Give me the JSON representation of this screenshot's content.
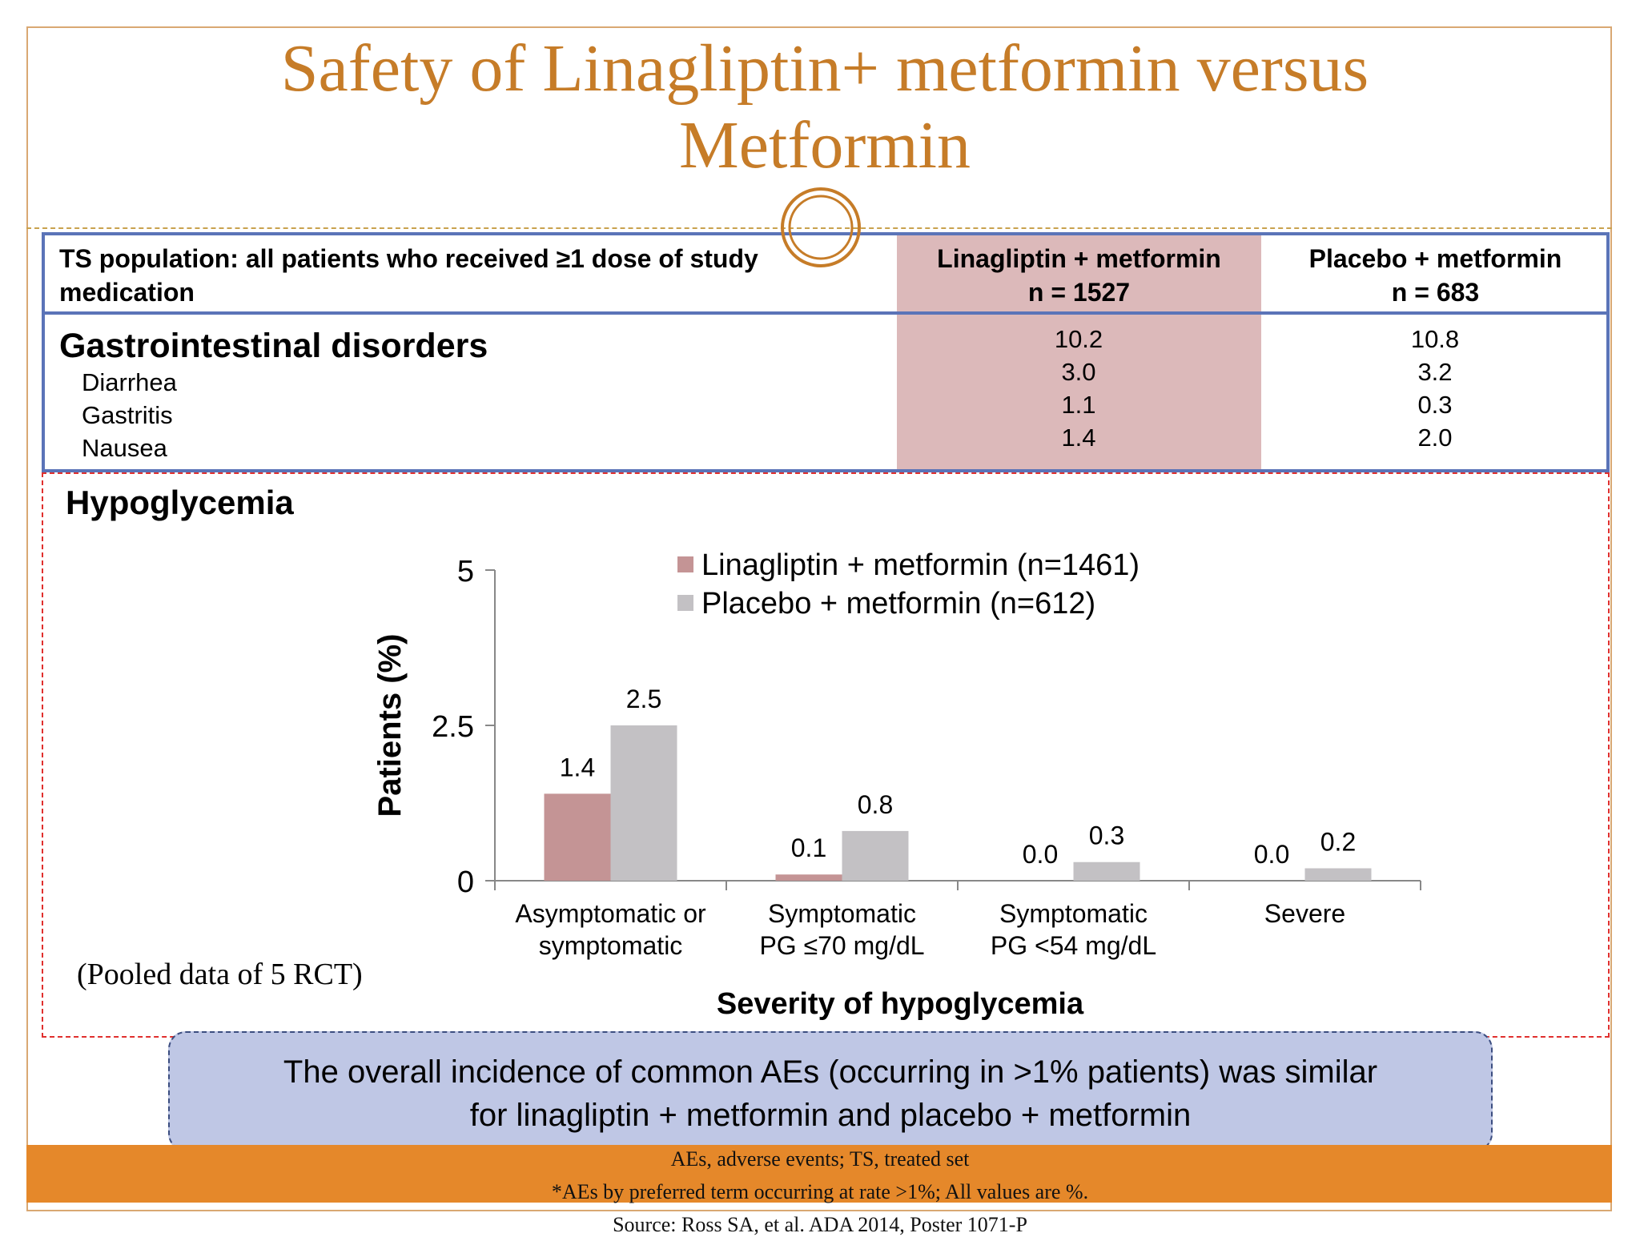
{
  "slide": {
    "title": "Safety of Linagliptin+ metformin  versus Metformin",
    "accent_color": "#c67c28"
  },
  "table": {
    "header_left": "TS population: all patients who received ≥1 dose of study medication",
    "col1_line1": "Linagliptin + metformin",
    "col1_line2": "n = 1527",
    "col2_line1": "Placebo + metformin",
    "col2_line2": "n = 683",
    "section_title": "Gastrointestinal disorders",
    "rows": [
      {
        "label": "Diarrhea",
        "col1": "3.0",
        "col2": "3.2"
      },
      {
        "label": "Gastritis",
        "col1": "1.1",
        "col2": "0.3"
      },
      {
        "label": "Nausea",
        "col1": "1.4",
        "col2": "2.0"
      }
    ],
    "section_col1": "10.2",
    "section_col2": "10.8"
  },
  "hypoglycemia": {
    "title": "Hypoglycemia",
    "pooled_note": "(Pooled data of 5 RCT)"
  },
  "chart_data": {
    "type": "bar",
    "ylabel": "Patients (%)",
    "xlabel": "Severity of hypoglycemia",
    "ylim": [
      0,
      5
    ],
    "yticks": [
      "0",
      "2.5",
      "5"
    ],
    "categories": [
      [
        "Asymptomatic or",
        "symptomatic"
      ],
      [
        "Symptomatic",
        "PG ≤70 mg/dL"
      ],
      [
        "Symptomatic",
        "PG <54 mg/dL"
      ],
      [
        "Severe"
      ]
    ],
    "series": [
      {
        "name": "Linagliptin + metformin (n=1461)",
        "color": "#c49495",
        "values": [
          1.4,
          0.1,
          0.0,
          0.0
        ],
        "labels": [
          "1.4",
          "0.1",
          "0.0",
          "0.0"
        ]
      },
      {
        "name": "Placebo + metformin (n=612)",
        "color": "#c3c1c4",
        "values": [
          2.5,
          0.8,
          0.3,
          0.2
        ],
        "labels": [
          "2.5",
          "0.8",
          "0.3",
          "0.2"
        ]
      }
    ],
    "legend": "top-right"
  },
  "callout": {
    "line1": "The overall incidence of common AEs (occurring in >1% patients) was similar",
    "line2": "for linagliptin + metformin and placebo + metformin"
  },
  "footnotes": {
    "line1": "AEs, adverse events; TS, treated set",
    "line2": "*AEs by preferred term occurring at rate >1%; All values are %.",
    "line3": "Source: Ross SA, et al. ADA 2014, Poster 1071-P"
  }
}
